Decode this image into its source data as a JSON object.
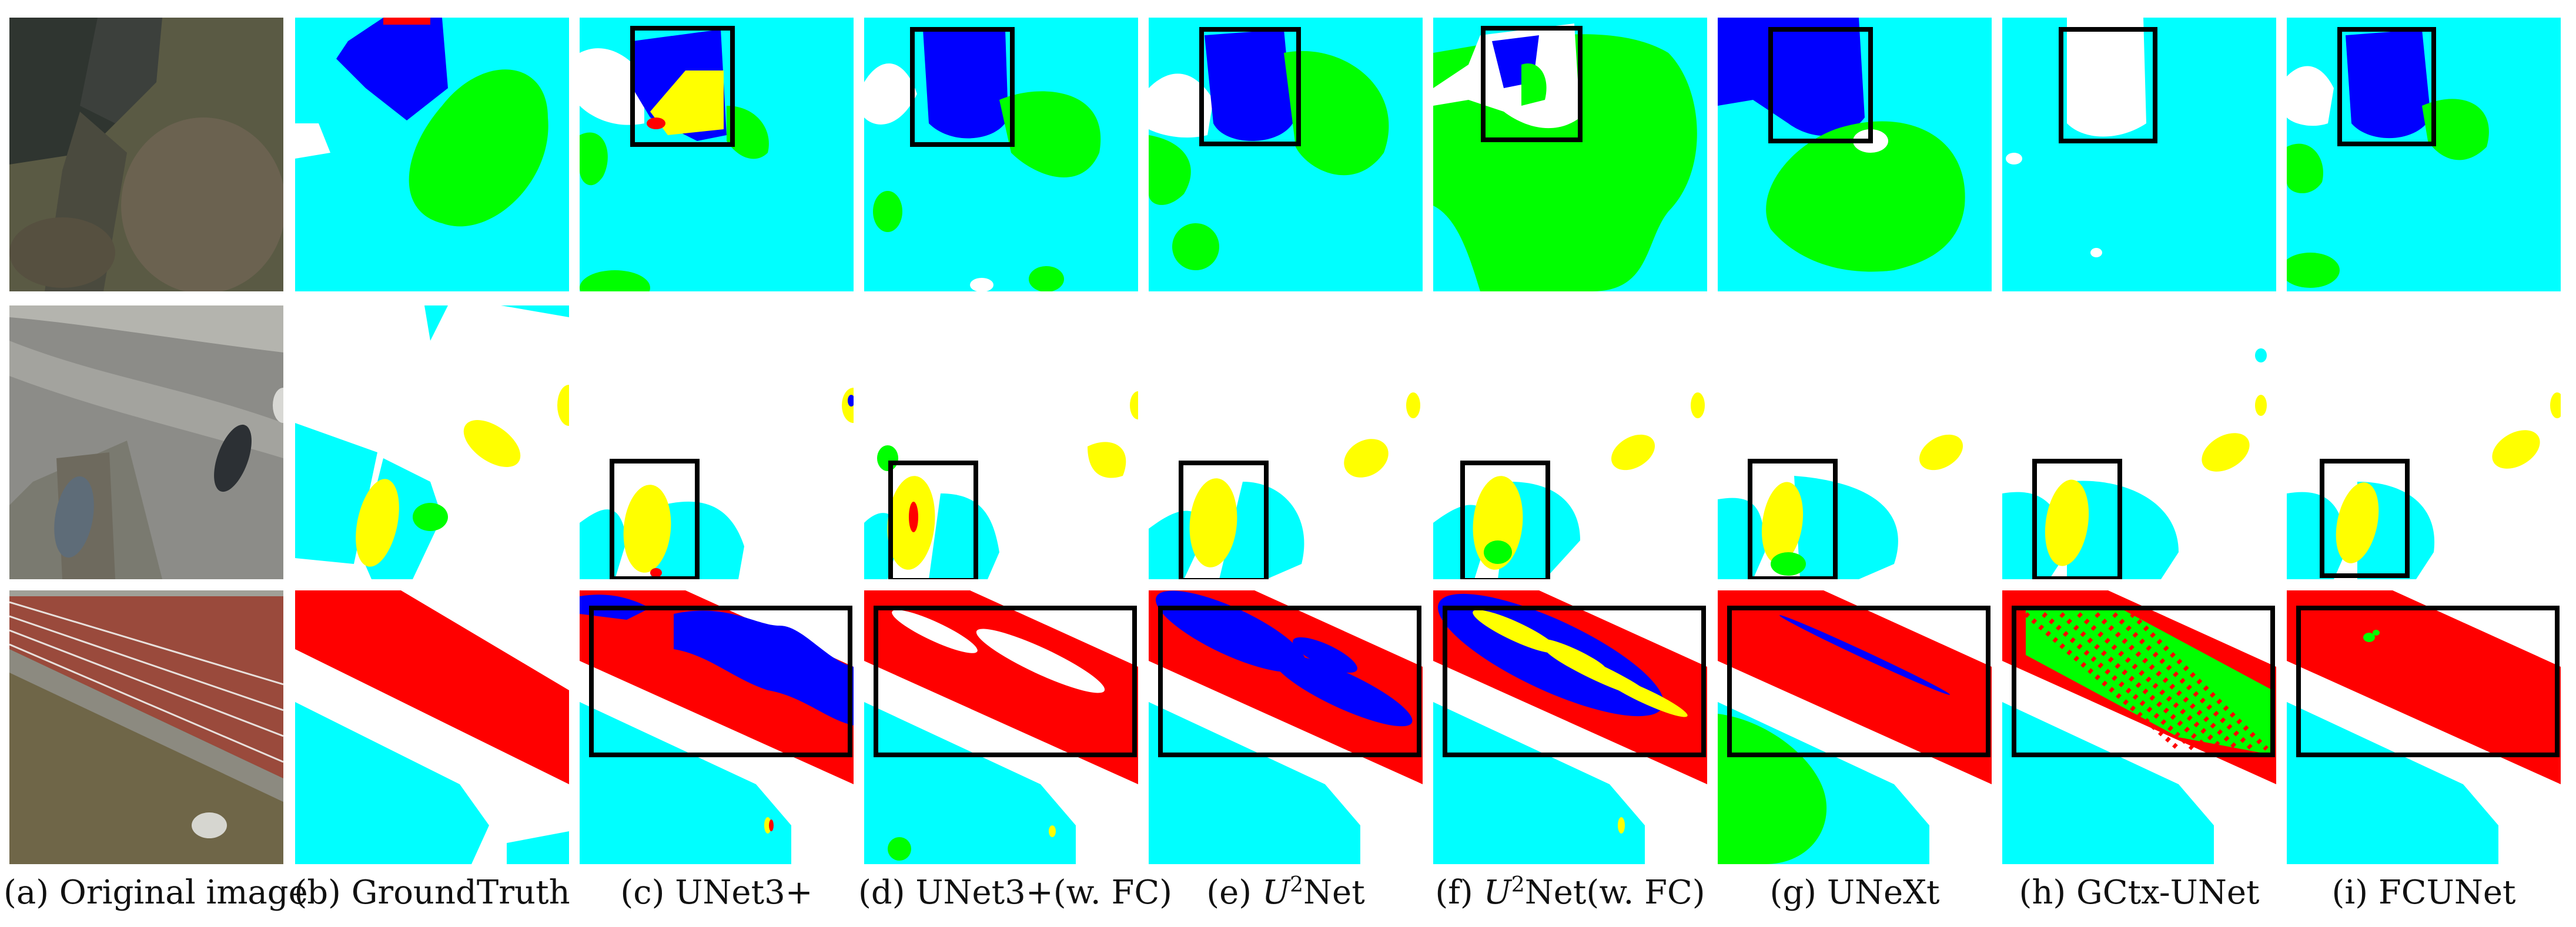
{
  "figure": {
    "columns": [
      {
        "id": "a",
        "prefix": "(a)",
        "label": "Original image"
      },
      {
        "id": "b",
        "prefix": "(b)",
        "label": "GroundTruth"
      },
      {
        "id": "c",
        "prefix": "(c)",
        "label": "UNet3+"
      },
      {
        "id": "d",
        "prefix": "(d)",
        "label": "UNet3+(w. FC)"
      },
      {
        "id": "e",
        "prefix": "(e)",
        "label_before": "",
        "label_math": "U",
        "label_sup": "2",
        "label_after": "Net"
      },
      {
        "id": "f",
        "prefix": "(f)",
        "label_before": "",
        "label_math": "U",
        "label_sup": "2",
        "label_after": "Net(w. FC)"
      },
      {
        "id": "g",
        "prefix": "(g)",
        "label": "UNeXt"
      },
      {
        "id": "h",
        "prefix": "(h)",
        "label": "GCtx-UNet"
      },
      {
        "id": "i",
        "prefix": "(i)",
        "label": "FCUNet"
      }
    ],
    "rows": [
      "row-1",
      "row-2",
      "row-3"
    ],
    "colors": {
      "impervious": "#ffffff",
      "building": "#0000ff",
      "low_vegetation": "#00ffff",
      "tree": "#00ff00",
      "car": "#ffff00",
      "clutter": "#ff0000",
      "box": "#000000"
    }
  }
}
